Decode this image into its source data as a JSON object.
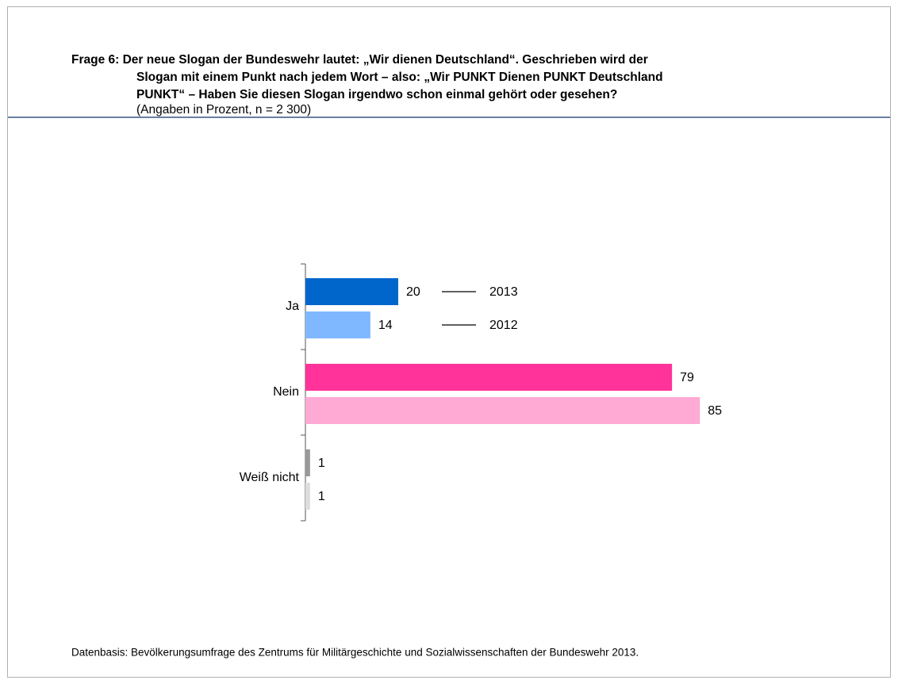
{
  "chart_data": {
    "type": "hbar",
    "title_lines": [
      "Frage 6: Der neue Slogan der Bundeswehr lautet: „Wir dienen Deutschland“. Geschrieben wird der",
      "Slogan mit einem Punkt nach jedem Wort – also: „Wir PUNKT Dienen PUNKT Deutschland",
      "PUNKT“ – Haben Sie diesen Slogan irgendwo schon einmal gehört oder gesehen?"
    ],
    "subtitle": "(Angaben in Prozent, n = 2 300)",
    "categories": [
      "Ja",
      "Nein",
      "Weiß nicht"
    ],
    "series": [
      {
        "name": "2013",
        "colors": [
          "#0066cc",
          "#ff3399",
          "#999999"
        ],
        "values": [
          20,
          79,
          1
        ]
      },
      {
        "name": "2012",
        "colors": [
          "#80b8ff",
          "#ffaad4",
          "#dddddd"
        ],
        "values": [
          14,
          85,
          1
        ]
      }
    ],
    "xlim": [
      0,
      100
    ],
    "source": "Datenbasis: Bevölkerungsumfrage des Zentrums für Militärgeschichte und Sozialwissenschaften der Bundeswehr 2013."
  }
}
